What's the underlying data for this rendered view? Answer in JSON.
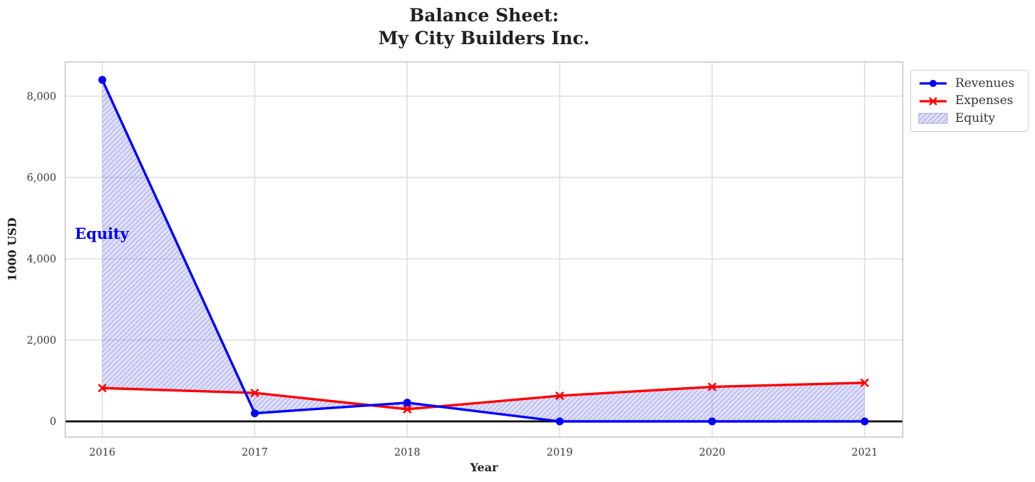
{
  "title": {
    "line1": "Balance Sheet:",
    "line2": "My City Builders Inc."
  },
  "chart_data": {
    "type": "line",
    "x": [
      2016,
      2017,
      2018,
      2019,
      2020,
      2021
    ],
    "x_tick_labels": [
      "2016",
      "2017",
      "2018",
      "2019",
      "2020",
      "2021"
    ],
    "series": [
      {
        "name": "Revenues",
        "values": [
          8400,
          200,
          460,
          0,
          0,
          0
        ],
        "color": "#0000ff",
        "marker": "circle"
      },
      {
        "name": "Expenses",
        "values": [
          820,
          700,
          300,
          630,
          850,
          950
        ],
        "color": "#ff0000",
        "marker": "x"
      }
    ],
    "fill_between": {
      "label": "Equity",
      "between": [
        "Revenues",
        "Expenses"
      ],
      "facecolor": "rgba(125,125,230,0.22)",
      "hatch": "//",
      "hatch_color": "rgba(100,100,220,0.28)"
    },
    "annotation": {
      "text": "Equity",
      "color": "#0000ff",
      "x": 2015.85,
      "y": 4600
    },
    "xlabel": "Year",
    "ylabel": "1000 USD",
    "y_ticks": [
      {
        "value": 0,
        "label": "0"
      },
      {
        "value": 2000,
        "label": "2,000"
      },
      {
        "value": 4000,
        "label": "4,000"
      },
      {
        "value": 6000,
        "label": "6,000"
      },
      {
        "value": 8000,
        "label": "8,000"
      }
    ],
    "xlim": [
      2015.75,
      2021.25
    ],
    "ylim": [
      -390,
      8850
    ],
    "grid": true,
    "zero_line": true,
    "legend": {
      "position": "outside-top-right",
      "entries": [
        "Revenues",
        "Expenses",
        "Equity"
      ]
    },
    "colors": {
      "grid": "#dcdcdc",
      "frame": "#c9c9c9",
      "zero_line": "#000000",
      "tick_text": "#3a3a3a",
      "title_text": "#212121"
    }
  }
}
